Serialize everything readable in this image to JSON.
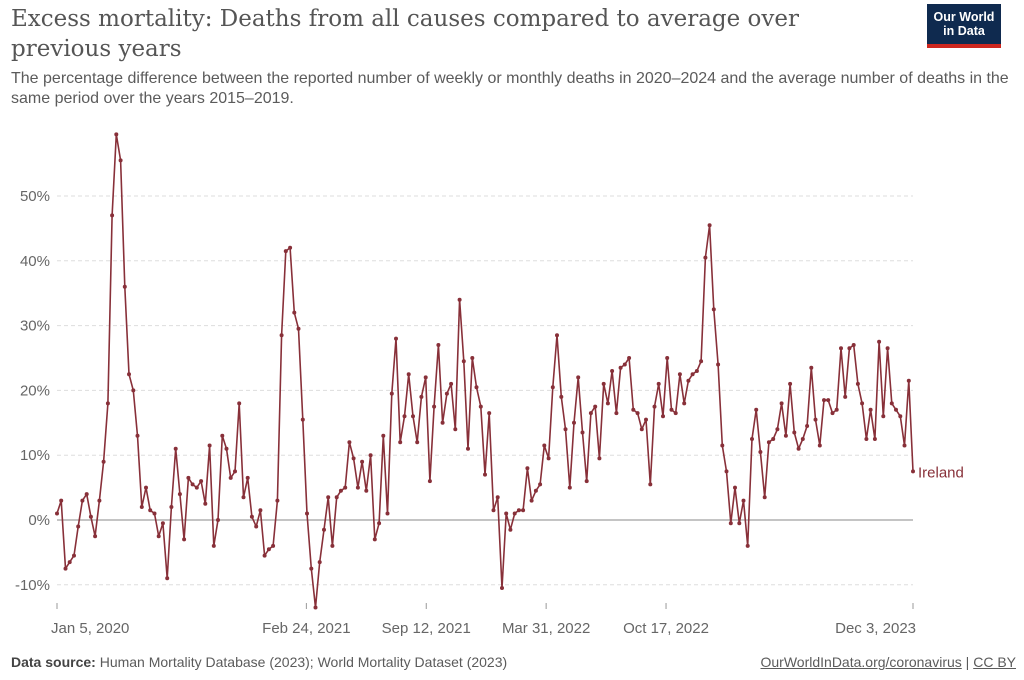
{
  "header": {
    "title": "Excess mortality: Deaths from all causes compared to average over previous years",
    "subtitle": "The percentage difference between the reported number of weekly or monthly deaths in 2020–2024 and the average number of deaths in the same period over the years 2015–2019.",
    "logo_line1": "Our World",
    "logo_line2": "in Data"
  },
  "footer": {
    "source_label": "Data source:",
    "source_text": "Human Mortality Database (2023); World Mortality Dataset (2023)",
    "link": "OurWorldInData.org/coronavirus",
    "separator": "|",
    "license": "CC BY"
  },
  "colors": {
    "series": "#883039",
    "grid": "#dddddd",
    "zero_line": "#a1a1a1",
    "text": "#666666"
  },
  "chart_data": {
    "type": "line",
    "title": "Excess mortality: Deaths from all causes compared to average over previous years",
    "xlabel": "",
    "ylabel": "",
    "x_start": "2020-01-05",
    "x_end": "2023-12-03",
    "x_ticks": [
      "Jan 5, 2020",
      "Feb 24, 2021",
      "Sep 12, 2021",
      "Mar 31, 2022",
      "Oct 17, 2022",
      "Dec 3, 2023"
    ],
    "y_ticks": [
      "-10%",
      "0%",
      "10%",
      "20%",
      "30%",
      "40%",
      "50%"
    ],
    "y_tick_values": [
      -10,
      0,
      10,
      20,
      30,
      40,
      50
    ],
    "ylim": [
      -13.5,
      60
    ],
    "grid": "horizontal dashed",
    "series": [
      {
        "name": "Ireland",
        "values": [
          1,
          3,
          -7.5,
          -6.5,
          -5.5,
          -1,
          3,
          4,
          0.5,
          -2.5,
          3,
          9,
          18,
          47,
          59.5,
          55.5,
          36,
          22.5,
          20,
          13,
          2,
          5,
          1.5,
          1,
          -2.5,
          -0.5,
          -9,
          2,
          11,
          4,
          -3,
          6.5,
          5.5,
          5,
          6,
          2.5,
          11.5,
          -4,
          0,
          13,
          11,
          6.5,
          7.5,
          18,
          3.5,
          6.5,
          0.5,
          -1,
          1.5,
          -5.5,
          -4.5,
          -4,
          3,
          28.5,
          41.5,
          42,
          32,
          29.5,
          15.5,
          1,
          -7.5,
          -13.5,
          -6.5,
          -1.5,
          3.5,
          -4,
          3.5,
          4.5,
          5,
          12,
          9.5,
          5,
          9,
          4.5,
          10,
          -3,
          -0.5,
          13,
          1,
          19.5,
          28,
          12,
          16,
          22.5,
          16,
          12,
          19,
          22,
          6,
          17.5,
          27,
          15,
          19.5,
          21,
          14,
          34,
          24.5,
          11,
          25,
          20.5,
          17.5,
          7,
          16.5,
          1.5,
          3.5,
          -10.5,
          1,
          -1.5,
          1,
          1.5,
          1.5,
          8,
          3,
          4.5,
          5.5,
          11.5,
          9.5,
          20.5,
          28.5,
          19,
          14,
          5,
          15,
          22,
          13.5,
          6,
          16.5,
          17.5,
          9.5,
          21,
          18,
          23,
          16.5,
          23.5,
          24,
          25,
          17,
          16.5,
          14,
          15.5,
          5.5,
          17.5,
          21,
          16,
          25,
          17,
          16.5,
          22.5,
          18,
          21.5,
          22.5,
          23,
          24.5,
          40.5,
          45.5,
          32.5,
          24,
          11.5,
          7.5,
          -0.5,
          5,
          -0.5,
          3,
          -4,
          12.5,
          17,
          10.5,
          3.5,
          12,
          12.5,
          14,
          18,
          13,
          21,
          13.5,
          11,
          12.5,
          14.5,
          23.5,
          15.5,
          11.5,
          18.5,
          18.5,
          16.5,
          17,
          26.5,
          19,
          26.5,
          27,
          21,
          18,
          12.5,
          17,
          12.5,
          27.5,
          16,
          26.5,
          18,
          17,
          16,
          11.5,
          21.5,
          7.5
        ]
      }
    ]
  }
}
